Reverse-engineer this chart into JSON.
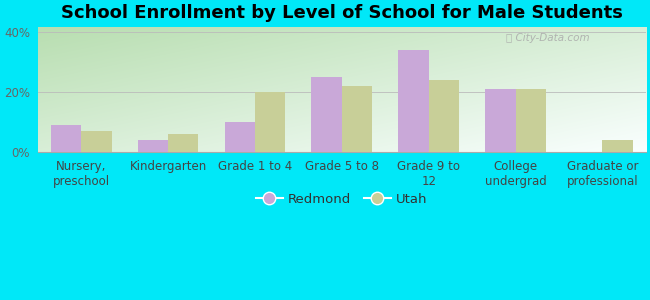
{
  "title": "School Enrollment by Level of School for Male Students",
  "categories": [
    "Nursery,\npreschool",
    "Kindergarten",
    "Grade 1 to 4",
    "Grade 5 to 8",
    "Grade 9 to\n12",
    "College\nundergrad",
    "Graduate or\nprofessional"
  ],
  "redmond": [
    9,
    4,
    10,
    25,
    34,
    21,
    0
  ],
  "utah": [
    7,
    6,
    20,
    22,
    24,
    21,
    4
  ],
  "redmond_color": "#c9a8d8",
  "utah_color": "#c8cf98",
  "bar_width": 0.35,
  "ylim": [
    0,
    42
  ],
  "yticks": [
    0,
    20,
    40
  ],
  "ytick_labels": [
    "0%",
    "20%",
    "40%"
  ],
  "legend_labels": [
    "Redmond",
    "Utah"
  ],
  "bg_color": "#00e8f8",
  "plot_bg_grad_top_left": "#b8ddb0",
  "plot_bg_bottom_right": "#f8fff8",
  "title_fontsize": 13,
  "axis_label_fontsize": 8.5,
  "watermark": "City-Data.com"
}
